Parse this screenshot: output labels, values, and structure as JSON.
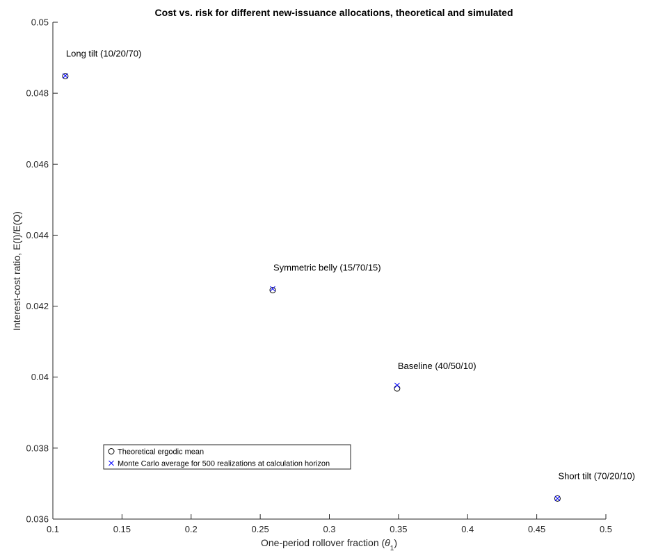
{
  "chart_data": {
    "type": "scatter",
    "title": "Cost vs. risk for different new-issuance allocations, theoretical and simulated",
    "xlabel_prefix": "One-period rollover fraction (",
    "xlabel_symbol": "θ",
    "xlabel_sub": "1",
    "xlabel_suffix": ")",
    "ylabel": "Interest-cost ratio, E(I)/E(Q)",
    "xlim": [
      0.1,
      0.5
    ],
    "ylim": [
      0.036,
      0.05
    ],
    "x_ticks": [
      "0.1",
      "0.15",
      "0.2",
      "0.25",
      "0.3",
      "0.35",
      "0.4",
      "0.45",
      "0.5"
    ],
    "x_tick_values": [
      0.1,
      0.15,
      0.2,
      0.25,
      0.3,
      0.35,
      0.4,
      0.45,
      0.5
    ],
    "y_ticks": [
      "0.036",
      "0.038",
      "0.04",
      "0.042",
      "0.044",
      "0.046",
      "0.048",
      "0.05"
    ],
    "y_tick_values": [
      0.036,
      0.038,
      0.04,
      0.042,
      0.044,
      0.046,
      0.048,
      0.05
    ],
    "grid": false,
    "legend_placement": "lower-left",
    "series": [
      {
        "name": "Theoretical ergodic mean",
        "marker": "circle",
        "color": "#000000",
        "points": [
          {
            "x": 0.109,
            "y": 0.04848
          },
          {
            "x": 0.259,
            "y": 0.04245
          },
          {
            "x": 0.349,
            "y": 0.03968
          },
          {
            "x": 0.465,
            "y": 0.03658
          }
        ]
      },
      {
        "name": "Monte Carlo average for 500 realizations at calculation horizon",
        "marker": "x",
        "color": "#0000ff",
        "points": [
          {
            "x": 0.109,
            "y": 0.04849
          },
          {
            "x": 0.259,
            "y": 0.04249
          },
          {
            "x": 0.349,
            "y": 0.03977
          },
          {
            "x": 0.465,
            "y": 0.03658
          }
        ]
      }
    ],
    "annotations": [
      {
        "text": "Long tilt (10/20/70)",
        "x": 0.109,
        "y": 0.04848
      },
      {
        "text": "Symmetric belly (15/70/15)",
        "x": 0.259,
        "y": 0.04245
      },
      {
        "text": "Baseline (40/50/10)",
        "x": 0.349,
        "y": 0.03968
      },
      {
        "text": "Short tilt (70/20/10)",
        "x": 0.465,
        "y": 0.03658
      }
    ]
  }
}
